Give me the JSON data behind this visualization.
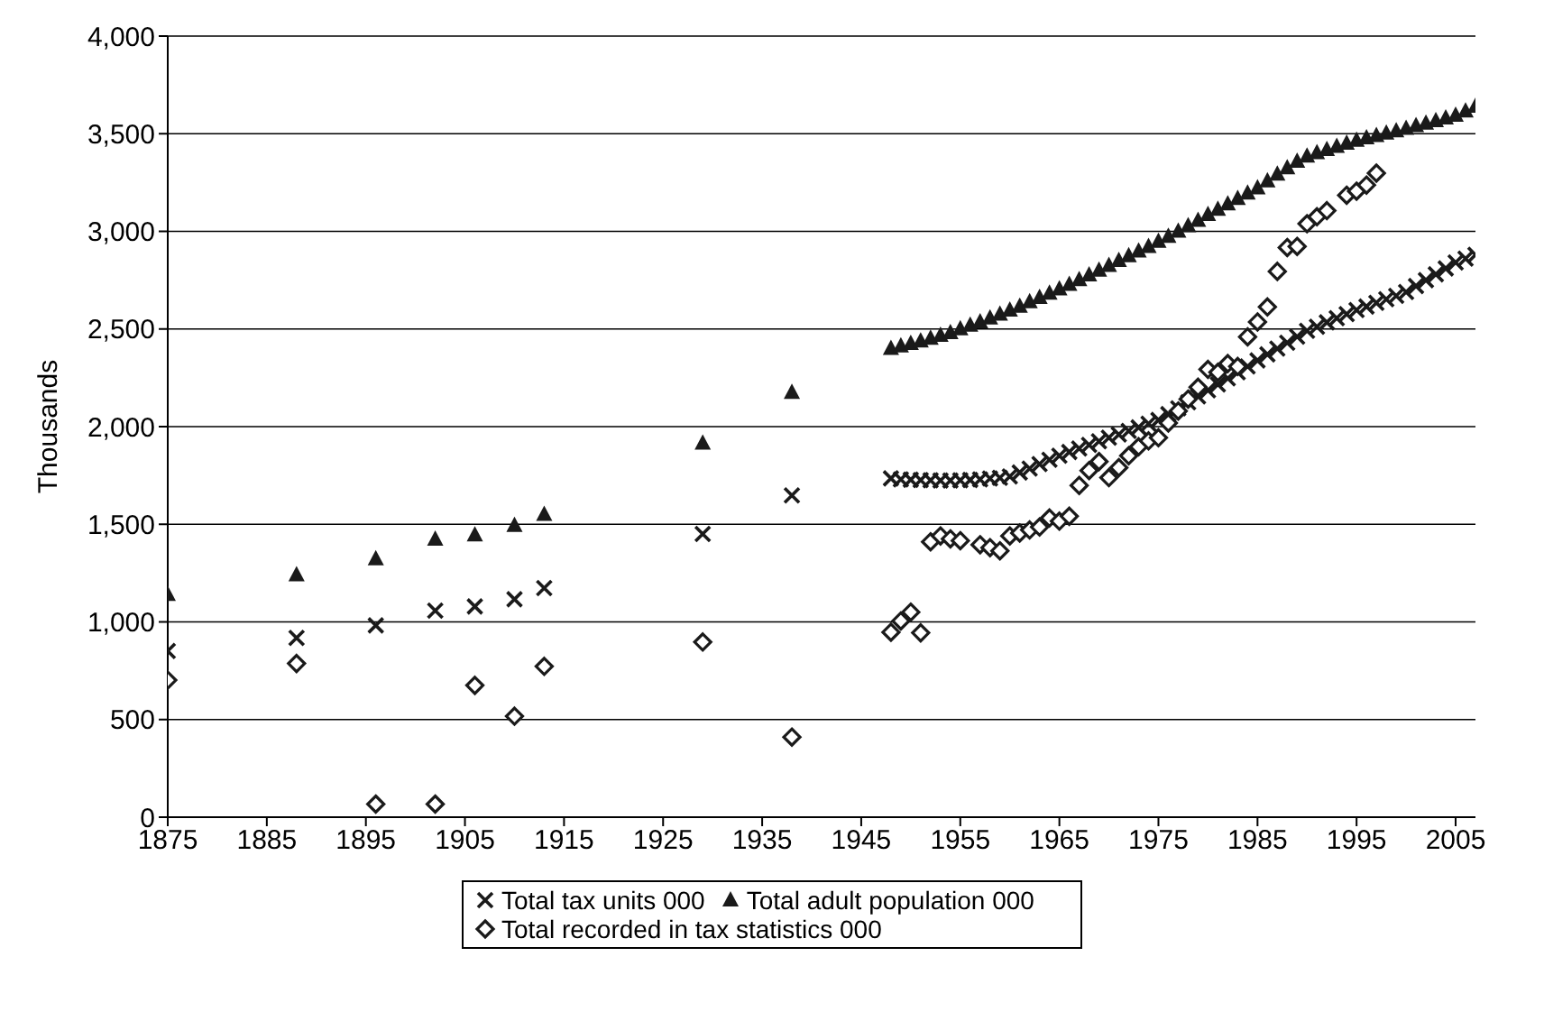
{
  "chart_data": {
    "type": "scatter",
    "ylabel": "Thousands",
    "xlim": [
      1875,
      2007
    ],
    "xticks": [
      1875,
      1885,
      1895,
      1905,
      1915,
      1925,
      1935,
      1945,
      1955,
      1965,
      1975,
      1985,
      1995,
      2005
    ],
    "ylim": [
      0,
      4000
    ],
    "yticks": [
      0,
      500,
      {
        "value": 1000,
        "label": "1,000"
      },
      {
        "value": 1500,
        "label": "1,500"
      },
      {
        "value": 2000,
        "label": "2,000"
      },
      {
        "value": 2500,
        "label": "2,500"
      },
      {
        "value": 3000,
        "label": "3,000"
      },
      {
        "value": 3500,
        "label": "3,500"
      },
      {
        "value": 4000,
        "label": "4,000"
      }
    ],
    "grid": "y",
    "legend": "bottom",
    "series": [
      {
        "name": "Total tax units 000",
        "color": "#1a1a1a",
        "marker": "cross",
        "x": [
          1875,
          1888,
          1896,
          1902,
          1906,
          1910,
          1913,
          1929,
          1938,
          1948,
          1949,
          1950,
          1951,
          1952,
          1953,
          1954,
          1955,
          1956,
          1957,
          1958,
          1959,
          1960,
          1961,
          1962,
          1963,
          1964,
          1965,
          1966,
          1967,
          1968,
          1969,
          1970,
          1971,
          1972,
          1973,
          1974,
          1975,
          1976,
          1977,
          1978,
          1979,
          1980,
          1981,
          1982,
          1983,
          1984,
          1985,
          1986,
          1987,
          1988,
          1989,
          1990,
          1991,
          1992,
          1993,
          1994,
          1995,
          1996,
          1997,
          1998,
          1999,
          2000,
          2001,
          2002,
          2003,
          2004,
          2005,
          2006,
          2007
        ],
        "values": [
          851,
          918,
          982,
          1058,
          1079,
          1116,
          1173,
          1450,
          1648,
          1735,
          1730,
          1728,
          1726,
          1725,
          1724,
          1724,
          1725,
          1727,
          1730,
          1734,
          1738,
          1745,
          1765,
          1785,
          1808,
          1830,
          1851,
          1870,
          1888,
          1906,
          1925,
          1943,
          1960,
          1978,
          1996,
          2015,
          2034,
          2064,
          2094,
          2125,
          2155,
          2186,
          2216,
          2247,
          2278,
          2308,
          2339,
          2370,
          2400,
          2430,
          2461,
          2491,
          2512,
          2534,
          2555,
          2576,
          2597,
          2615,
          2634,
          2652,
          2670,
          2689,
          2720,
          2750,
          2780,
          2810,
          2841,
          2860,
          2880
        ]
      },
      {
        "name": "Total adult population 000",
        "color": "#1a1a1a",
        "marker": "triangle",
        "x": [
          1875,
          1888,
          1896,
          1902,
          1906,
          1910,
          1913,
          1929,
          1938,
          1948,
          1949,
          1950,
          1951,
          1952,
          1953,
          1954,
          1955,
          1956,
          1957,
          1958,
          1959,
          1960,
          1961,
          1962,
          1963,
          1964,
          1965,
          1966,
          1967,
          1968,
          1969,
          1970,
          1971,
          1972,
          1973,
          1974,
          1975,
          1976,
          1977,
          1978,
          1979,
          1980,
          1981,
          1982,
          1983,
          1984,
          1985,
          1986,
          1987,
          1988,
          1989,
          1990,
          1991,
          1992,
          1993,
          1994,
          1995,
          1996,
          1997,
          1998,
          1999,
          2000,
          2001,
          2002,
          2003,
          2004,
          2005,
          2006,
          2007
        ],
        "values": [
          1140,
          1240,
          1322,
          1423,
          1444,
          1493,
          1550,
          1915,
          2174,
          2400,
          2412,
          2425,
          2438,
          2452,
          2466,
          2480,
          2500,
          2518,
          2536,
          2555,
          2575,
          2596,
          2616,
          2638,
          2660,
          2682,
          2704,
          2728,
          2752,
          2776,
          2800,
          2825,
          2850,
          2874,
          2898,
          2922,
          2948,
          2974,
          3000,
          3028,
          3056,
          3085,
          3112,
          3140,
          3168,
          3195,
          3222,
          3258,
          3292,
          3325,
          3358,
          3385,
          3402,
          3418,
          3434,
          3450,
          3465,
          3478,
          3490,
          3502,
          3514,
          3526,
          3540,
          3553,
          3566,
          3580,
          3593,
          3615,
          3640
        ]
      },
      {
        "name": "Total recorded in tax statistics 000",
        "color": "#1a1a1a",
        "marker": "diamond",
        "x": [
          1875,
          1888,
          1896,
          1902,
          1906,
          1910,
          1913,
          1929,
          1938,
          1948,
          1949,
          1950,
          1951,
          1952,
          1953,
          1954,
          1955,
          1957,
          1958,
          1959,
          1960,
          1961,
          1962,
          1963,
          1964,
          1965,
          1966,
          1967,
          1968,
          1969,
          1970,
          1971,
          1972,
          1973,
          1974,
          1975,
          1976,
          1977,
          1978,
          1979,
          1980,
          1981,
          1982,
          1983,
          1984,
          1985,
          1986,
          1987,
          1988,
          1989,
          1990,
          1991,
          1992,
          1994,
          1995,
          1996,
          1997
        ],
        "values": [
          702,
          787,
          67,
          67,
          675,
          517,
          772,
          897,
          410,
          947,
          1005,
          1050,
          944,
          1410,
          1440,
          1425,
          1416,
          1395,
          1380,
          1364,
          1440,
          1455,
          1471,
          1486,
          1532,
          1516,
          1541,
          1699,
          1775,
          1821,
          1739,
          1790,
          1851,
          1897,
          1927,
          1943,
          2019,
          2080,
          2141,
          2202,
          2293,
          2278,
          2323,
          2308,
          2460,
          2536,
          2613,
          2795,
          2917,
          2923,
          3039,
          3075,
          3106,
          3185,
          3206,
          3237,
          3298
        ]
      }
    ]
  }
}
